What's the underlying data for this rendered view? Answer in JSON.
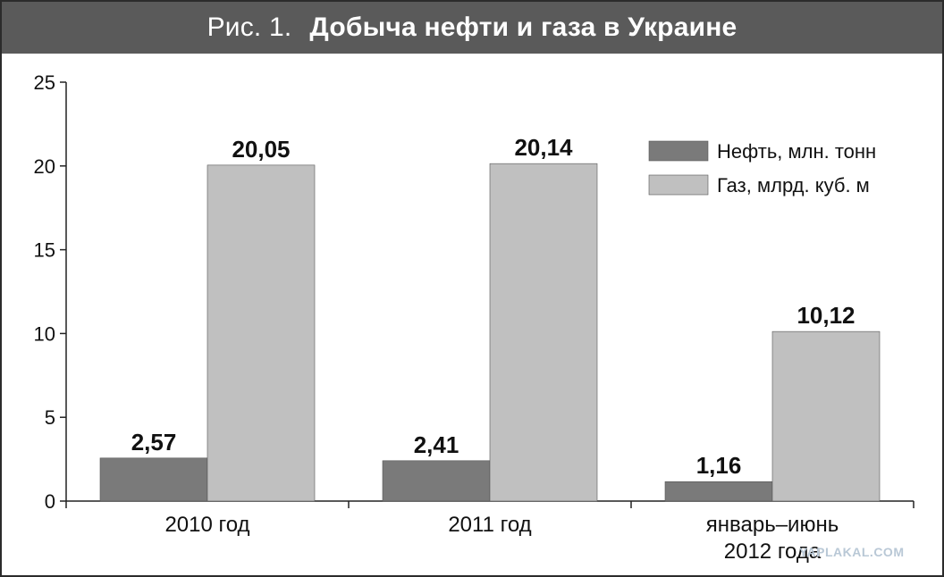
{
  "title": {
    "prefix": "Рис. 1.",
    "main": "Добыча нефти и газа в Украине"
  },
  "watermark": "YAPLAKAL.COM",
  "chart_data": {
    "type": "bar",
    "categories": [
      [
        "2010 год"
      ],
      [
        "2011 год"
      ],
      [
        "январь–июнь",
        "2012 года"
      ]
    ],
    "series": [
      {
        "name": "Нефть, млн. тонн",
        "color": "#7a7a7a",
        "values": [
          2.57,
          2.41,
          1.16
        ],
        "labels": [
          "2,57",
          "2,41",
          "1,16"
        ]
      },
      {
        "name": "Газ, млрд. куб. м",
        "color": "#c0c0c0",
        "values": [
          20.05,
          20.14,
          10.12
        ],
        "labels": [
          "20,05",
          "20,14",
          "10,12"
        ]
      }
    ],
    "ylim": [
      0,
      25
    ],
    "yticks": [
      0,
      5,
      10,
      15,
      20,
      25
    ],
    "grid": false,
    "legend": "right"
  }
}
